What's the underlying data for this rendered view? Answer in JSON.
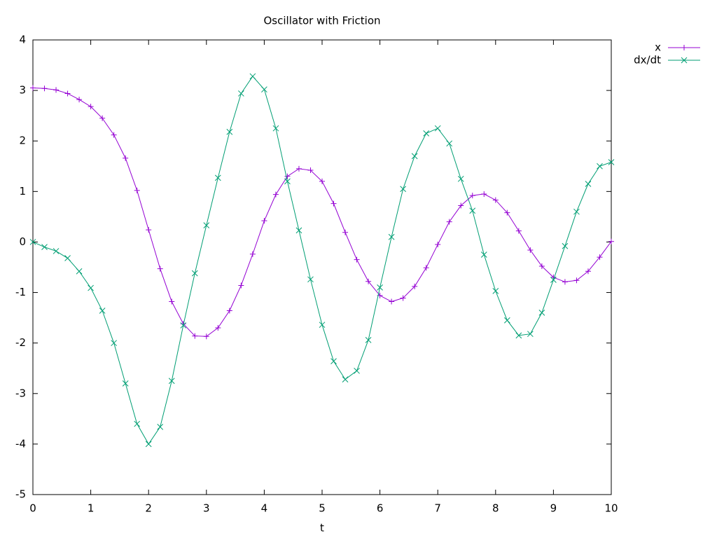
{
  "chart_data": {
    "type": "line",
    "title": "Oscillator with Friction",
    "x_label": "t",
    "x": [
      0,
      0.2,
      0.4,
      0.6,
      0.8,
      1,
      1.2,
      1.4,
      1.6,
      1.8,
      2,
      2.2,
      2.4,
      2.6,
      2.8,
      3,
      3.2,
      3.4,
      3.6,
      3.8,
      4,
      4.2,
      4.4,
      4.6,
      4.8,
      5,
      5.2,
      5.4,
      5.6,
      5.8,
      6,
      6.2,
      6.4,
      6.6,
      6.8,
      7,
      7.2,
      7.4,
      7.6,
      7.8,
      8,
      8.2,
      8.4,
      8.6,
      8.8,
      9,
      9.2,
      9.4,
      9.6,
      9.8,
      10
    ],
    "series": [
      {
        "name": "x",
        "color": "#9400d3",
        "marker": "plus",
        "values": [
          3.05,
          3.04,
          3.01,
          2.94,
          2.82,
          2.68,
          2.45,
          2.12,
          1.66,
          1.02,
          0.24,
          -0.53,
          -1.18,
          -1.62,
          -1.86,
          -1.87,
          -1.7,
          -1.36,
          -0.86,
          -0.24,
          0.42,
          0.94,
          1.3,
          1.45,
          1.42,
          1.2,
          0.76,
          0.19,
          -0.35,
          -0.78,
          -1.06,
          -1.18,
          -1.11,
          -0.88,
          -0.51,
          -0.05,
          0.4,
          0.72,
          0.92,
          0.95,
          0.83,
          0.58,
          0.22,
          -0.16,
          -0.48,
          -0.7,
          -0.79,
          -0.76,
          -0.58,
          -0.3,
          0.01
        ]
      },
      {
        "name": "dx/dt",
        "color": "#009e73",
        "marker": "cross",
        "values": [
          0,
          -0.1,
          -0.18,
          -0.32,
          -0.58,
          -0.91,
          -1.36,
          -2.0,
          -2.8,
          -3.6,
          -4.0,
          -3.66,
          -2.75,
          -1.65,
          -0.62,
          0.33,
          1.27,
          2.18,
          2.94,
          3.28,
          3.02,
          2.25,
          1.2,
          0.23,
          -0.74,
          -1.64,
          -2.36,
          -2.72,
          -2.55,
          -1.94,
          -0.9,
          0.1,
          1.05,
          1.7,
          2.15,
          2.25,
          1.95,
          1.25,
          0.62,
          -0.25,
          -0.97,
          -1.55,
          -1.85,
          -1.82,
          -1.4,
          -0.75,
          -0.08,
          0.6,
          1.15,
          1.5,
          1.58
        ]
      }
    ],
    "xlim": [
      0,
      10
    ],
    "xticks": [
      0,
      1,
      2,
      3,
      4,
      5,
      6,
      7,
      8,
      9,
      10
    ],
    "ylim": [
      -5,
      4
    ],
    "yticks": [
      -5,
      -4,
      -3,
      -2,
      -1,
      0,
      1,
      2,
      3,
      4
    ],
    "grid": false,
    "legend": "outside-top-right"
  }
}
